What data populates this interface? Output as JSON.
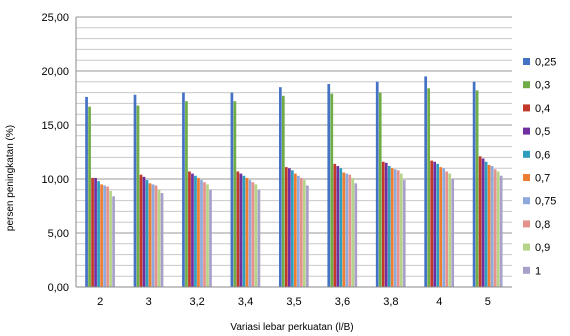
{
  "chart_data": {
    "type": "bar",
    "title": "",
    "xlabel": "Variasi lebar perkuatan (l/B)",
    "ylabel": "persen peningkatan (%)",
    "ylim": [
      0,
      25
    ],
    "yticks": [
      "0,00",
      "5,00",
      "10,00",
      "15,00",
      "20,00",
      "25,00"
    ],
    "ytick_values": [
      0,
      5,
      10,
      15,
      20,
      25
    ],
    "grid": true,
    "legend_position": "right",
    "categories": [
      "2",
      "3",
      "3,2",
      "3,4",
      "3,5",
      "3,6",
      "3,8",
      "4",
      "5"
    ],
    "series": [
      {
        "name": "0,25",
        "color": "#4472C4",
        "values": [
          17.6,
          17.8,
          18.0,
          18.0,
          18.5,
          18.8,
          19.0,
          19.5,
          19.0
        ]
      },
      {
        "name": "0,3",
        "color": "#70AD47",
        "values": [
          16.7,
          16.8,
          17.2,
          17.2,
          17.7,
          17.9,
          18.0,
          18.4,
          18.2
        ]
      },
      {
        "name": "0,4",
        "color": "#C0392B",
        "values": [
          10.1,
          10.4,
          10.7,
          10.7,
          11.1,
          11.4,
          11.6,
          11.7,
          12.1
        ]
      },
      {
        "name": "0,5",
        "color": "#7030A0",
        "values": [
          10.1,
          10.2,
          10.5,
          10.5,
          11.0,
          11.2,
          11.5,
          11.6,
          11.9
        ]
      },
      {
        "name": "0,6",
        "color": "#2E9DBE",
        "values": [
          9.8,
          9.9,
          10.3,
          10.3,
          10.8,
          11.0,
          11.2,
          11.4,
          11.6
        ]
      },
      {
        "name": "0,7",
        "color": "#ED7D31",
        "values": [
          9.5,
          9.6,
          10.1,
          10.1,
          10.5,
          10.6,
          11.0,
          11.1,
          11.3
        ]
      },
      {
        "name": "0,75",
        "color": "#8EA9DB",
        "values": [
          9.4,
          9.5,
          9.9,
          9.9,
          10.3,
          10.5,
          10.9,
          11.0,
          11.2
        ]
      },
      {
        "name": "0,8",
        "color": "#E6928C",
        "values": [
          9.3,
          9.4,
          9.7,
          9.7,
          10.1,
          10.4,
          10.8,
          10.7,
          10.9
        ]
      },
      {
        "name": "0,9",
        "color": "#B5D48A",
        "values": [
          8.9,
          9.0,
          9.5,
          9.5,
          9.9,
          10.1,
          10.5,
          10.5,
          10.7
        ]
      },
      {
        "name": "1",
        "color": "#A9A0C9",
        "values": [
          8.4,
          8.7,
          9.0,
          9.0,
          9.4,
          9.6,
          9.9,
          10.0,
          10.3
        ]
      }
    ]
  }
}
